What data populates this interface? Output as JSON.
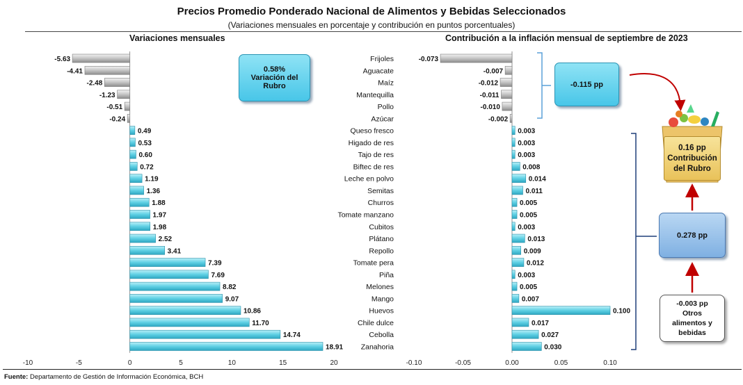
{
  "title": "Precios Promedio Ponderado Nacional de Alimentos y Bebidas Seleccionados",
  "subtitle": "(Variaciones mensuales en porcentaje y contribución en puntos porcentuales)",
  "source_label": "Fuente:",
  "source_text": " Departamento de Gestión de Información Económica, BCH",
  "colors": {
    "negative": "#bdbdbd",
    "positive": "#66d4e6",
    "bracket_neg": "#5aa0d8",
    "bracket_pos": "#1f3f78",
    "arrow": "#c00000"
  },
  "boxes": {
    "rubro_value": "0.58%",
    "rubro_label1": "Variación del",
    "rubro_label2": "Rubro",
    "neg_sum": "-0.115 pp",
    "pos_sum": "0.278 pp",
    "otros_value": "-0.003 pp",
    "otros_label1": "Otros",
    "otros_label2": "alimentos y",
    "otros_label3": "bebidas",
    "total_value": "0.16 pp",
    "total_label1": "Contribución",
    "total_label2": "del Rubro"
  },
  "chart_data": [
    {
      "type": "bar",
      "orientation": "horizontal",
      "title": "Variaciones mensuales",
      "categories": [
        "Frijoles",
        "Aguacate",
        "Maíz",
        "Mantequilla",
        "Pollo",
        "Azúcar",
        "Queso fresco",
        "Higado de res",
        "Tajo de res",
        "Biftec de res",
        "Leche en polvo",
        "Semitas",
        "Churros",
        "Tomate manzano",
        "Cubitos",
        "Plátano",
        "Repollo",
        "Tomate pera",
        "Piña",
        "Melones",
        "Mango",
        "Huevos",
        "Chile dulce",
        "Cebolla",
        "Zanahoria"
      ],
      "values": [
        -5.63,
        -4.41,
        -2.48,
        -1.23,
        -0.51,
        -0.24,
        0.49,
        0.53,
        0.6,
        0.72,
        1.19,
        1.36,
        1.88,
        1.97,
        1.98,
        2.52,
        3.41,
        7.39,
        7.69,
        8.82,
        9.07,
        10.86,
        11.7,
        14.74,
        18.91
      ],
      "value_labels": [
        "-5.63",
        "-4.41",
        "-2.48",
        "-1.23",
        "-0.51",
        "-0.24",
        "0.49",
        "0.53",
        "0.60",
        "0.72",
        "1.19",
        "1.36",
        "1.88",
        "1.97",
        "1.98",
        "2.52",
        "3.41",
        "7.39",
        "7.69",
        "8.82",
        "9.07",
        "10.86",
        "11.70",
        "14.74",
        "18.91"
      ],
      "xlim": [
        -10,
        20
      ],
      "ticks": [
        -10,
        -5,
        0,
        5,
        10,
        15,
        20
      ],
      "tick_labels": [
        "-10",
        "-5",
        "0",
        "5",
        "10",
        "15",
        "20"
      ]
    },
    {
      "type": "bar",
      "orientation": "horizontal",
      "title": "Contribución a la inflación mensual de septiembre de 2023",
      "categories": [
        "Frijoles",
        "Aguacate",
        "Maíz",
        "Mantequilla",
        "Pollo",
        "Azúcar",
        "Queso fresco",
        "Higado de res",
        "Tajo de res",
        "Biftec de res",
        "Leche en polvo",
        "Semitas",
        "Churros",
        "Tomate manzano",
        "Cubitos",
        "Plátano",
        "Repollo",
        "Tomate pera",
        "Piña",
        "Melones",
        "Mango",
        "Huevos",
        "Chile dulce",
        "Cebolla",
        "Zanahoria"
      ],
      "values": [
        -0.073,
        -0.007,
        -0.012,
        -0.011,
        -0.01,
        -0.002,
        0.003,
        0.003,
        0.003,
        0.008,
        0.014,
        0.011,
        0.005,
        0.005,
        0.003,
        0.013,
        0.009,
        0.012,
        0.003,
        0.005,
        0.007,
        0.1,
        0.017,
        0.027,
        0.03
      ],
      "value_labels": [
        "-0.073",
        "-0.007",
        "-0.012",
        "-0.011",
        "-0.010",
        "-0.002",
        "0.003",
        "0.003",
        "0.003",
        "0.008",
        "0.014",
        "0.011",
        "0.005",
        "0.005",
        "0.003",
        "0.013",
        "0.009",
        "0.012",
        "0.003",
        "0.005",
        "0.007",
        "0.100",
        "0.017",
        "0.027",
        "0.030"
      ],
      "xlim": [
        -0.1,
        0.1
      ],
      "ticks": [
        -0.1,
        -0.05,
        0.0,
        0.05,
        0.1
      ],
      "tick_labels": [
        "-0.10",
        "-0.05",
        "0.00",
        "0.05",
        "0.10"
      ]
    }
  ]
}
